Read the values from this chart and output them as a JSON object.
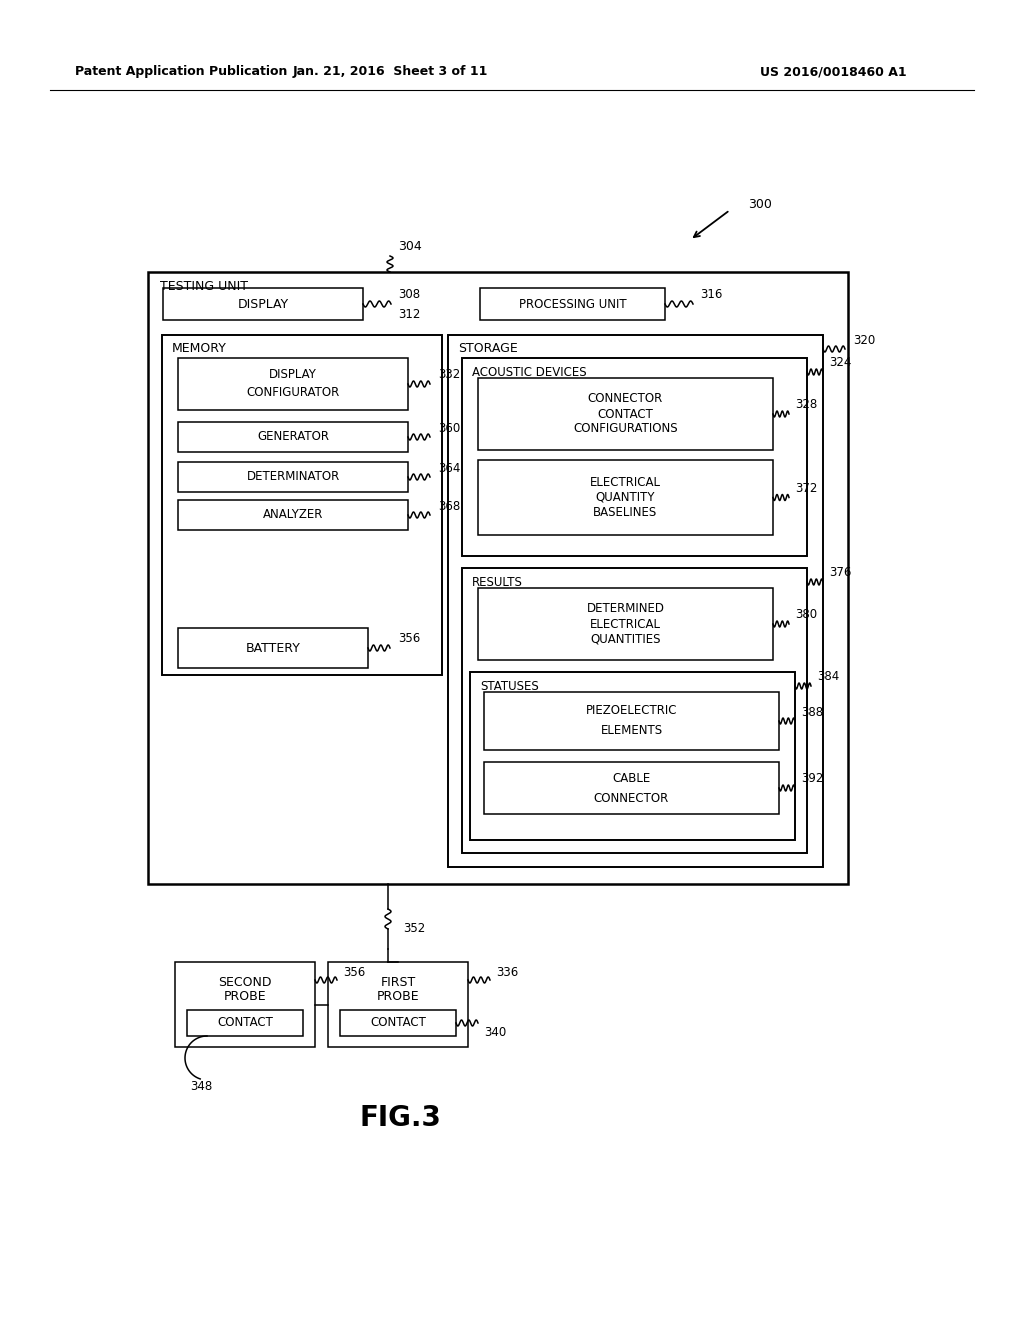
{
  "bg_color": "#ffffff",
  "header_left": "Patent Application Publication",
  "header_mid": "Jan. 21, 2016  Sheet 3 of 11",
  "header_right": "US 2016/0018460 A1",
  "fig_label": "FIG.3"
}
